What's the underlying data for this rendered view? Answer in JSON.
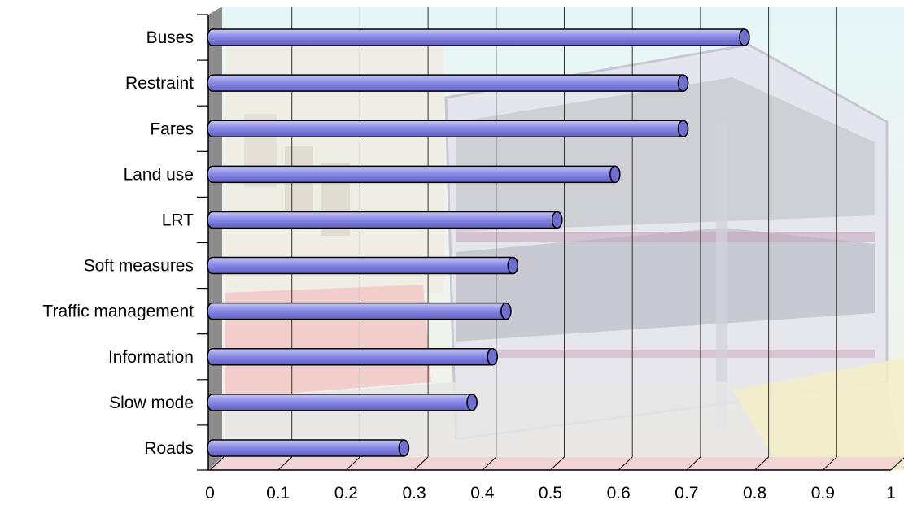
{
  "chart_data": {
    "type": "bar",
    "orientation": "horizontal",
    "categories": [
      "Buses",
      "Restraint",
      "Fares",
      "Land use",
      "LRT",
      "Soft measures",
      "Traffic management",
      "Information",
      "Slow mode",
      "Roads"
    ],
    "values": [
      0.78,
      0.69,
      0.69,
      0.59,
      0.505,
      0.44,
      0.43,
      0.41,
      0.38,
      0.28
    ],
    "xlim": [
      0,
      1
    ],
    "xticks": [
      "0",
      "0.1",
      "0.2",
      "0.3",
      "0.4",
      "0.5",
      "0.6",
      "0.7",
      "0.8",
      "0.9",
      "1"
    ],
    "title": "",
    "xlabel": "",
    "ylabel": "",
    "grid": true,
    "legend": "none",
    "bar_color": "#8a8ae6",
    "background": "faded photograph of a double-decker bus"
  },
  "colors": {
    "bar_fill": "#8a8ae6",
    "bar_end": "#6f6fd0",
    "side_wall": "#8c8c8c",
    "gridline": "#333333"
  }
}
